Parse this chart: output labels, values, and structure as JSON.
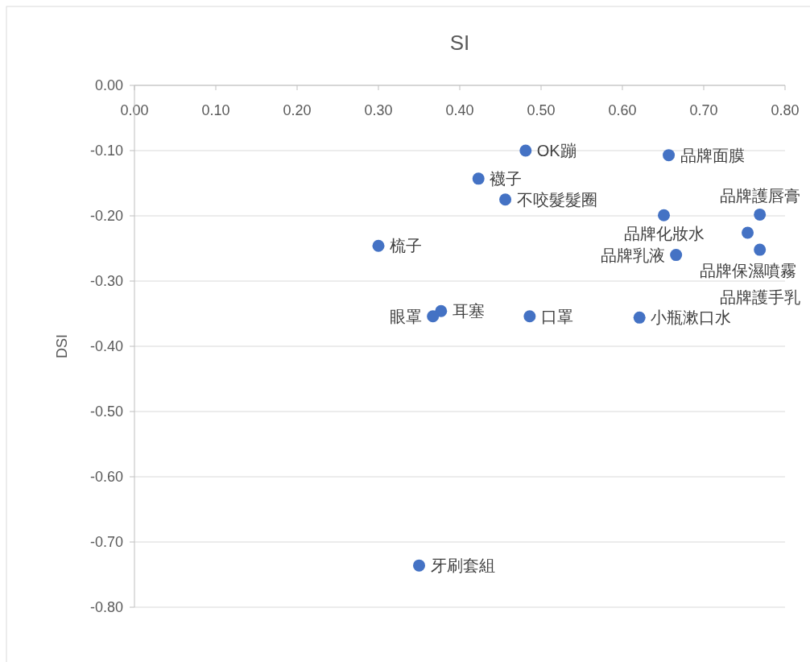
{
  "chart_data": {
    "type": "scatter",
    "title": "SI",
    "ylabel": "DSI",
    "marker": "circle",
    "grid": "y",
    "xlim": [
      0,
      0.8
    ],
    "ylim": [
      -0.8,
      0
    ],
    "xticks": [
      {
        "value": 0,
        "label": "0.00"
      },
      {
        "value": 0.1,
        "label": "0.10"
      },
      {
        "value": 0.2,
        "label": "0.20"
      },
      {
        "value": 0.3,
        "label": "0.30"
      },
      {
        "value": 0.4,
        "label": "0.40"
      },
      {
        "value": 0.5,
        "label": "0.50"
      },
      {
        "value": 0.6,
        "label": "0.60"
      },
      {
        "value": 0.7,
        "label": "0.70"
      },
      {
        "value": 0.8,
        "label": "0.80"
      }
    ],
    "yticks": [
      {
        "value": 0,
        "label": "0.00"
      },
      {
        "value": -0.1,
        "label": "-0.10"
      },
      {
        "value": -0.2,
        "label": "-0.20"
      },
      {
        "value": -0.3,
        "label": "-0.30"
      },
      {
        "value": -0.4,
        "label": "-0.40"
      },
      {
        "value": -0.5,
        "label": "-0.50"
      },
      {
        "value": -0.6,
        "label": "-0.60"
      },
      {
        "value": -0.7,
        "label": "-0.70"
      },
      {
        "value": -0.8,
        "label": "-0.80"
      }
    ],
    "series": [
      {
        "color": "#4472c4",
        "x": [
          0.481,
          0.657,
          0.423,
          0.456,
          0.3,
          0.377,
          0.367,
          0.486,
          0.621,
          0.651,
          0.769,
          0.754,
          0.769,
          0.666,
          0.35
        ],
        "values": [
          -0.1,
          -0.107,
          -0.143,
          -0.175,
          -0.246,
          -0.346,
          -0.354,
          -0.354,
          -0.356,
          -0.199,
          -0.198,
          -0.226,
          -0.252,
          -0.26,
          -0.736
        ]
      }
    ],
    "annotations": [
      {
        "text": "OK蹦",
        "x": 0.481,
        "y": -0.1
      },
      {
        "text": "品牌面膜",
        "x": 0.657,
        "y": -0.107
      },
      {
        "text": "襪子",
        "x": 0.423,
        "y": -0.143
      },
      {
        "text": "不咬髮髮圈",
        "x": 0.456,
        "y": -0.175
      },
      {
        "text": "梳子",
        "x": 0.3,
        "y": -0.246
      },
      {
        "text": "耳塞",
        "x": 0.377,
        "y": -0.346
      },
      {
        "text": "眼罩",
        "x": 0.367,
        "y": -0.354
      },
      {
        "text": "口罩",
        "x": 0.486,
        "y": -0.354
      },
      {
        "text": "小瓶漱口水",
        "x": 0.621,
        "y": -0.356
      },
      {
        "text": "品牌化妝水",
        "x": 0.651,
        "y": -0.199
      },
      {
        "text": "品牌護唇膏",
        "x": 0.769,
        "y": -0.198
      },
      {
        "text": "品牌保濕噴霧",
        "x": 0.754,
        "y": -0.226
      },
      {
        "text": "品牌護手乳",
        "x": 0.769,
        "y": -0.252
      },
      {
        "text": "品牌乳液",
        "x": 0.666,
        "y": -0.26
      },
      {
        "text": "牙刷套組",
        "x": 0.35,
        "y": -0.736
      }
    ]
  }
}
